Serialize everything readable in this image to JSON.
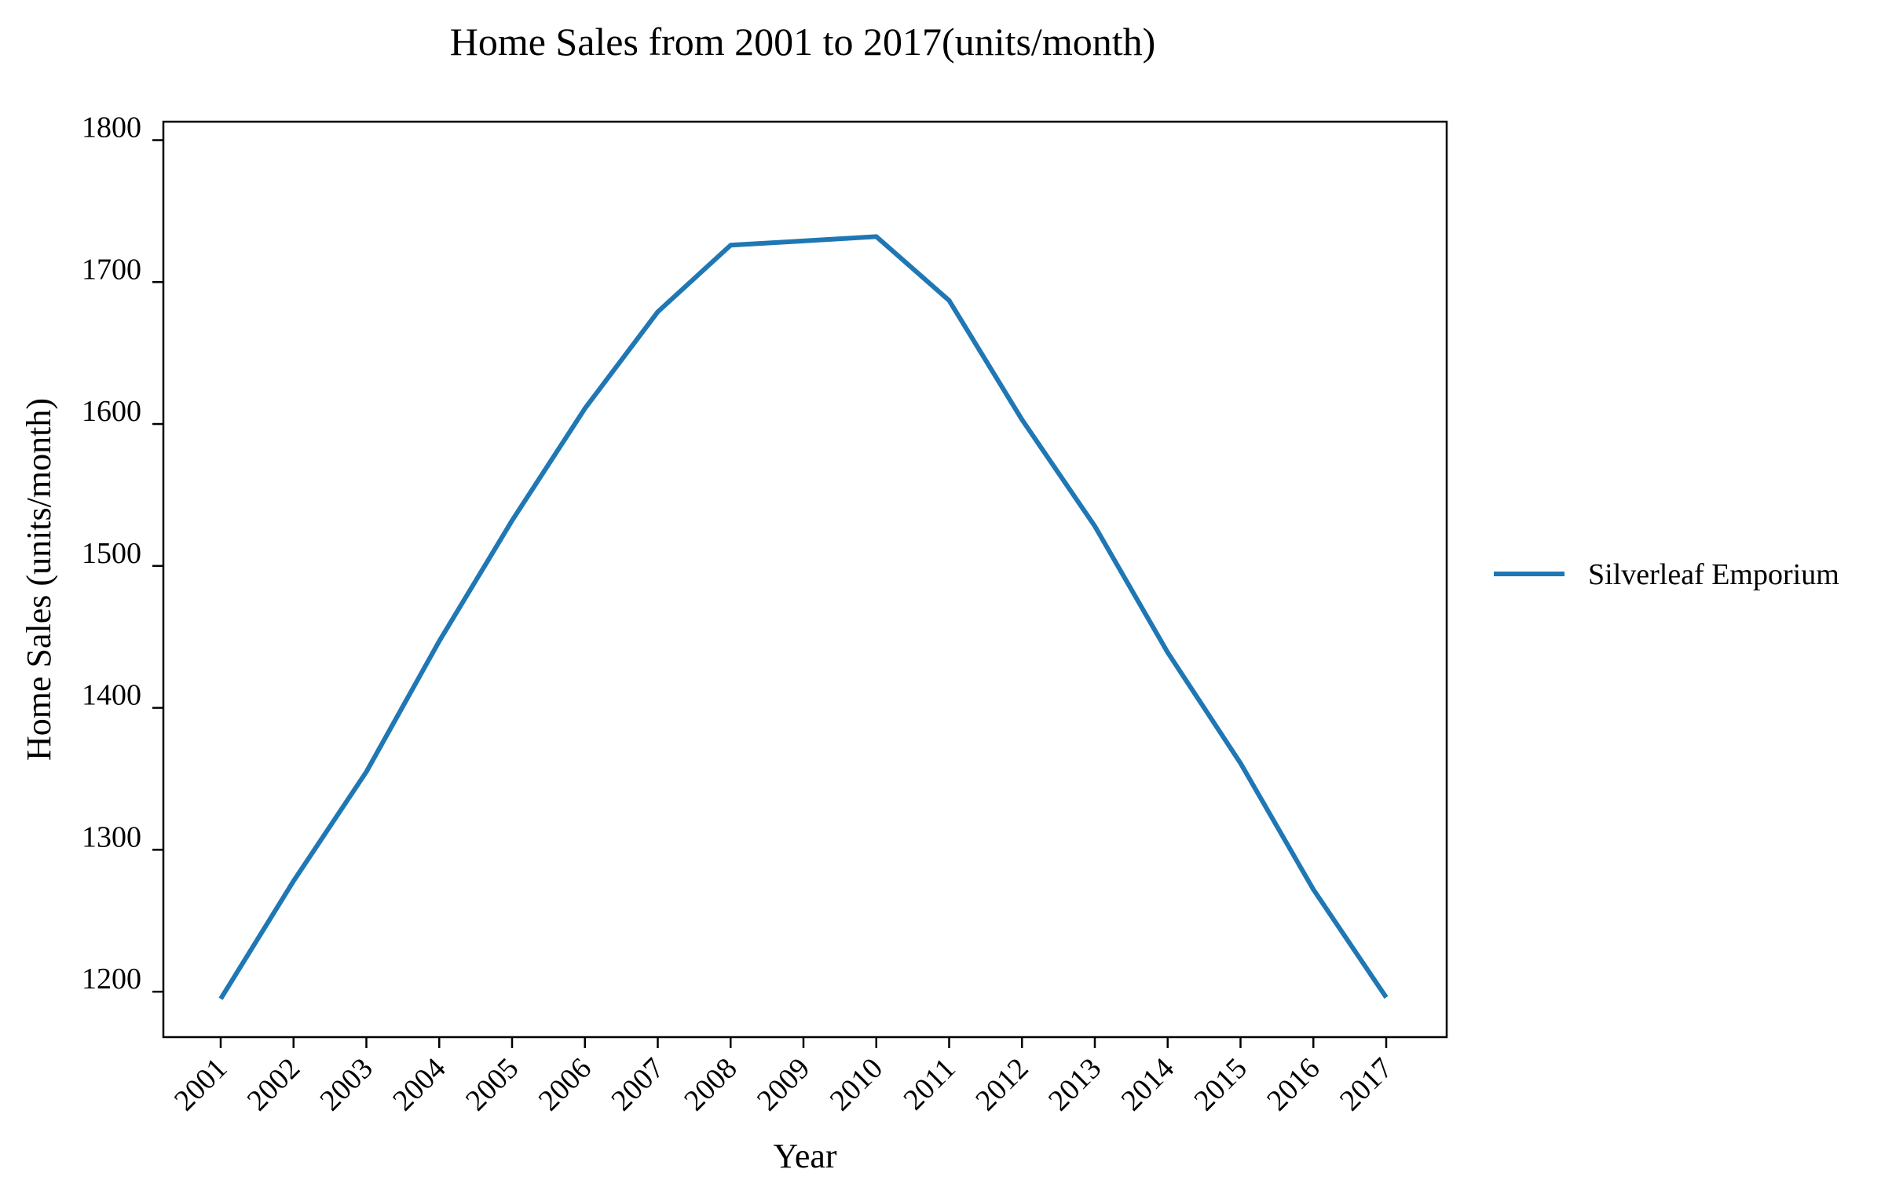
{
  "chart_data": {
    "type": "line",
    "title": "Home Sales from 2001 to 2017(units/month)",
    "xlabel": "Year",
    "ylabel": "Home Sales (units/month)",
    "categories": [
      "2001",
      "2002",
      "2003",
      "2004",
      "2005",
      "2006",
      "2007",
      "2008",
      "2009",
      "2010",
      "2011",
      "2012",
      "2013",
      "2014",
      "2015",
      "2016",
      "2017"
    ],
    "series": [
      {
        "name": "Silverleaf Emporium",
        "color": "#1f77b4",
        "values": [
          1195,
          1278,
          1355,
          1447,
          1532,
          1611,
          1679,
          1726,
          1729,
          1732,
          1687,
          1603,
          1528,
          1439,
          1361,
          1272,
          1196
        ]
      }
    ],
    "ylim": [
      1168,
      1813
    ],
    "yticks": [
      1200,
      1300,
      1400,
      1500,
      1600,
      1700,
      1800
    ],
    "grid": false,
    "legend_position": "right"
  }
}
